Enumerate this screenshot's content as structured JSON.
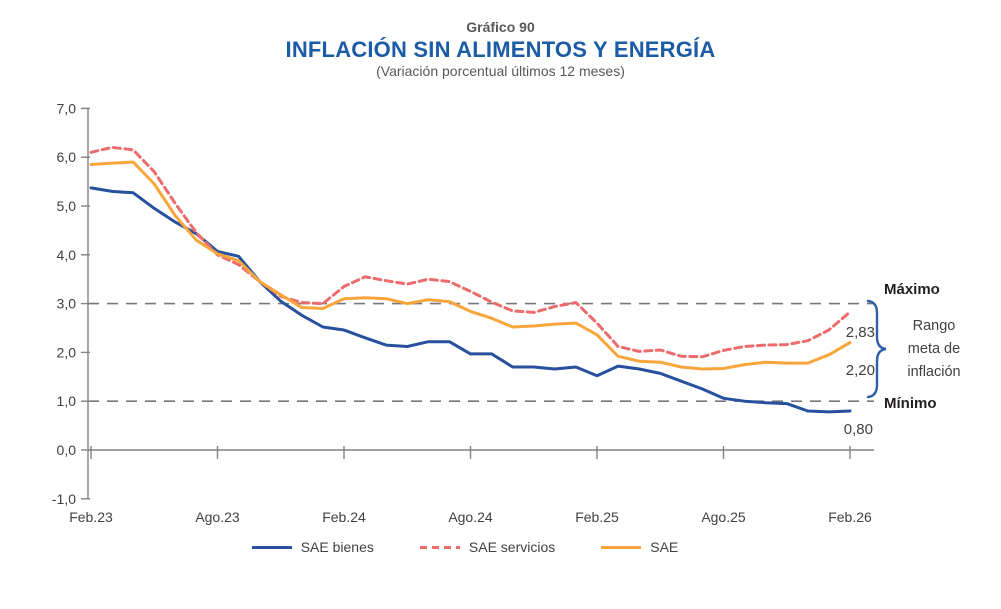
{
  "header": {
    "chart_number": "Gráfico 90",
    "title": "INFLACIÓN SIN ALIMENTOS Y ENERGÍA",
    "subtitle": "(Variación porcentual últimos 12 meses)"
  },
  "annotations": {
    "maximo": "Máximo",
    "minimo": "Mínimo",
    "rango_line1": "Rango",
    "rango_line2": "meta de",
    "rango_line3": "inflación",
    "end_label_servicios": "2,83",
    "end_label_sae": "2,20",
    "end_label_bienes": "0,80"
  },
  "legend": [
    {
      "label": "SAE bienes",
      "color": "#27509E",
      "dashed": false
    },
    {
      "label": "SAE servicios",
      "color": "#EE6B6B",
      "dashed": true
    },
    {
      "label": "SAE",
      "color": "#F8A63C",
      "dashed": false
    }
  ],
  "colors": {
    "title_blue": "#1C5BA5",
    "title_gray": "#58595B",
    "axis_gray": "#808285",
    "grid_dash_gray": "#77787B",
    "text_gray": "#414042",
    "dark_text": "#231F20",
    "series_bienes": "#27509E",
    "series_servicios": "#EE6B6B",
    "series_sae": "#F8A63C",
    "brace_blue": "#2E5FA8"
  },
  "chart_data": {
    "type": "line",
    "title": "INFLACIÓN SIN ALIMENTOS Y ENERGÍA",
    "subtitle": "(Variación porcentual últimos 12 meses)",
    "ylim": [
      -1,
      7
    ],
    "y_tick_labels": [
      "7,0",
      "6,0",
      "5,0",
      "4,0",
      "3,0",
      "2,0",
      "1,0",
      "0,0",
      "-1,0"
    ],
    "y_tick_values": [
      7,
      6,
      5,
      4,
      3,
      2,
      1,
      0,
      -1
    ],
    "x_tick_labels": [
      "Feb.23",
      "Ago.23",
      "Feb.24",
      "Ago.24",
      "Feb.25",
      "Ago.25",
      "Feb.26"
    ],
    "x_tick_month_indices": [
      0,
      6,
      12,
      18,
      24,
      30,
      36
    ],
    "months": [
      "Feb.23",
      "Mar.23",
      "Abr.23",
      "May.23",
      "Jun.23",
      "Jul.23",
      "Ago.23",
      "Sep.23",
      "Oct.23",
      "Nov.23",
      "Dic.23",
      "Ene.24",
      "Feb.24",
      "Mar.24",
      "Abr.24",
      "May.24",
      "Jun.24",
      "Jul.24",
      "Ago.24",
      "Sep.24",
      "Oct.24",
      "Nov.24",
      "Dic.24",
      "Ene.25",
      "Feb.25",
      "Mar.25",
      "Abr.25",
      "May.25",
      "Jun.25",
      "Jul.25",
      "Ago.25",
      "Sep.25",
      "Oct.25",
      "Nov.25",
      "Dic.25",
      "Ene.26",
      "Feb.26"
    ],
    "reference_lines": [
      {
        "value": 3,
        "label": "Máximo"
      },
      {
        "value": 1,
        "label": "Mínimo"
      }
    ],
    "reference_band_label": "Rango meta de inflación",
    "series": [
      {
        "name": "SAE bienes",
        "key": "sae-bienes",
        "color": "#27509E",
        "dashed": false,
        "end_label": "0,80",
        "values": [
          5.37,
          5.3,
          5.27,
          4.95,
          4.67,
          4.43,
          4.07,
          3.97,
          3.45,
          3.05,
          2.76,
          2.52,
          2.46,
          2.3,
          2.15,
          2.12,
          2.22,
          2.22,
          1.97,
          1.97,
          1.7,
          1.7,
          1.66,
          1.7,
          1.52,
          1.72,
          1.66,
          1.57,
          1.41,
          1.25,
          1.06,
          1.0,
          0.97,
          0.95,
          0.8,
          0.78,
          0.8
        ]
      },
      {
        "name": "SAE servicios",
        "key": "sae-servicios",
        "color": "#EE6B6B",
        "dashed": true,
        "end_label": "2,83",
        "values": [
          6.1,
          6.2,
          6.15,
          5.7,
          5.05,
          4.45,
          4.0,
          3.8,
          3.45,
          3.15,
          3.02,
          3.0,
          3.35,
          3.55,
          3.47,
          3.4,
          3.5,
          3.45,
          3.25,
          3.03,
          2.85,
          2.82,
          2.94,
          3.02,
          2.6,
          2.12,
          2.02,
          2.05,
          1.92,
          1.91,
          2.04,
          2.12,
          2.15,
          2.16,
          2.24,
          2.46,
          2.83
        ]
      },
      {
        "name": "SAE",
        "key": "sae",
        "color": "#F8A63C",
        "dashed": false,
        "end_label": "2,20",
        "values": [
          5.85,
          5.88,
          5.9,
          5.45,
          4.8,
          4.3,
          4.02,
          3.88,
          3.45,
          3.18,
          2.92,
          2.9,
          3.1,
          3.12,
          3.1,
          3.0,
          3.08,
          3.04,
          2.84,
          2.7,
          2.52,
          2.54,
          2.58,
          2.6,
          2.36,
          1.92,
          1.82,
          1.8,
          1.7,
          1.66,
          1.67,
          1.75,
          1.8,
          1.78,
          1.78,
          1.95,
          2.2
        ]
      }
    ]
  }
}
